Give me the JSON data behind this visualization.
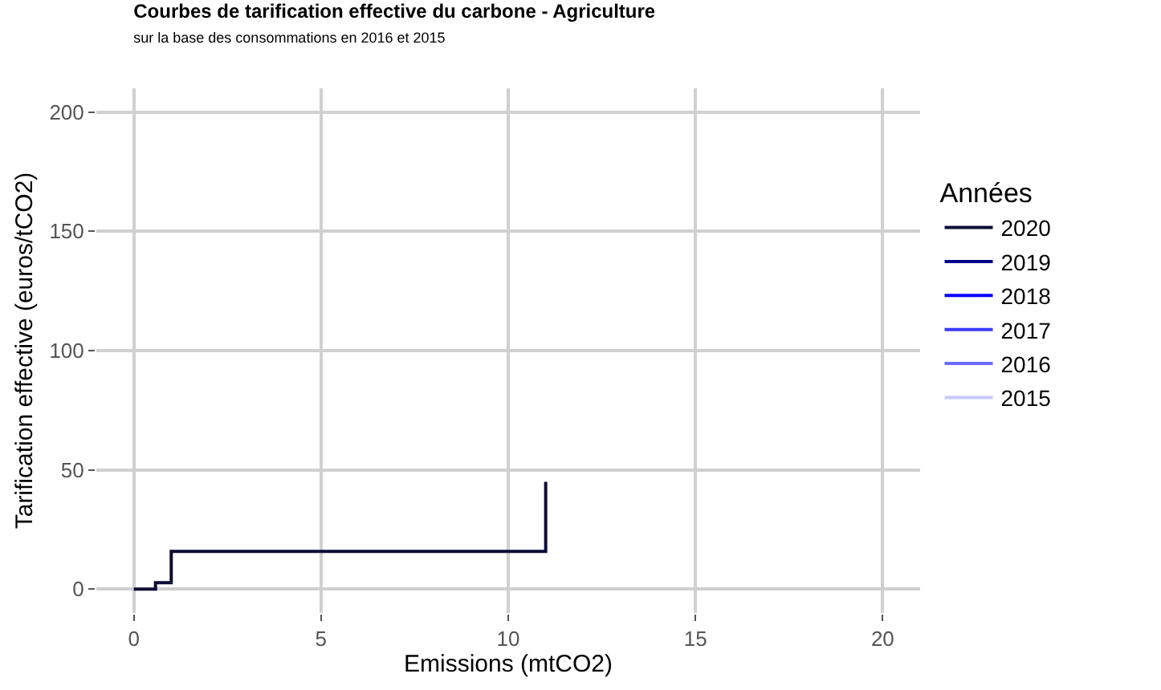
{
  "chart_data": {
    "type": "step",
    "title": "Courbes de tarification effective du carbone - Agriculture",
    "subtitle": "sur la base des consommations en 2016 et 2015",
    "xlabel": "Emissions (mtCO2)",
    "ylabel": "Tarification effective (euros/tCO2)",
    "legend_title": "Années",
    "x": [
      0,
      0.58,
      1.0,
      11.0
    ],
    "series": [
      {
        "name": "2020",
        "color": "#0d0d35",
        "values": [
          0,
          2.7,
          15.8,
          45
        ]
      },
      {
        "name": "2019",
        "color": "#00008b",
        "values": [
          null,
          null,
          null,
          null
        ]
      },
      {
        "name": "2018",
        "color": "#0000ff",
        "values": [
          null,
          null,
          null,
          null
        ]
      },
      {
        "name": "2017",
        "color": "#3a3aff",
        "values": [
          null,
          null,
          null,
          null
        ]
      },
      {
        "name": "2016",
        "color": "#6b6bff",
        "values": [
          null,
          null,
          null,
          null
        ]
      },
      {
        "name": "2015",
        "color": "#c8c8ff",
        "values": [
          null,
          null,
          null,
          null
        ]
      }
    ],
    "xlim": [
      -1,
      21
    ],
    "xticks": [
      0,
      5,
      10,
      15,
      20
    ],
    "ylim": [
      -10,
      210
    ],
    "yticks": [
      0,
      50,
      100,
      150,
      200
    ],
    "grid": true,
    "legend": "right",
    "line_style": "solid"
  }
}
